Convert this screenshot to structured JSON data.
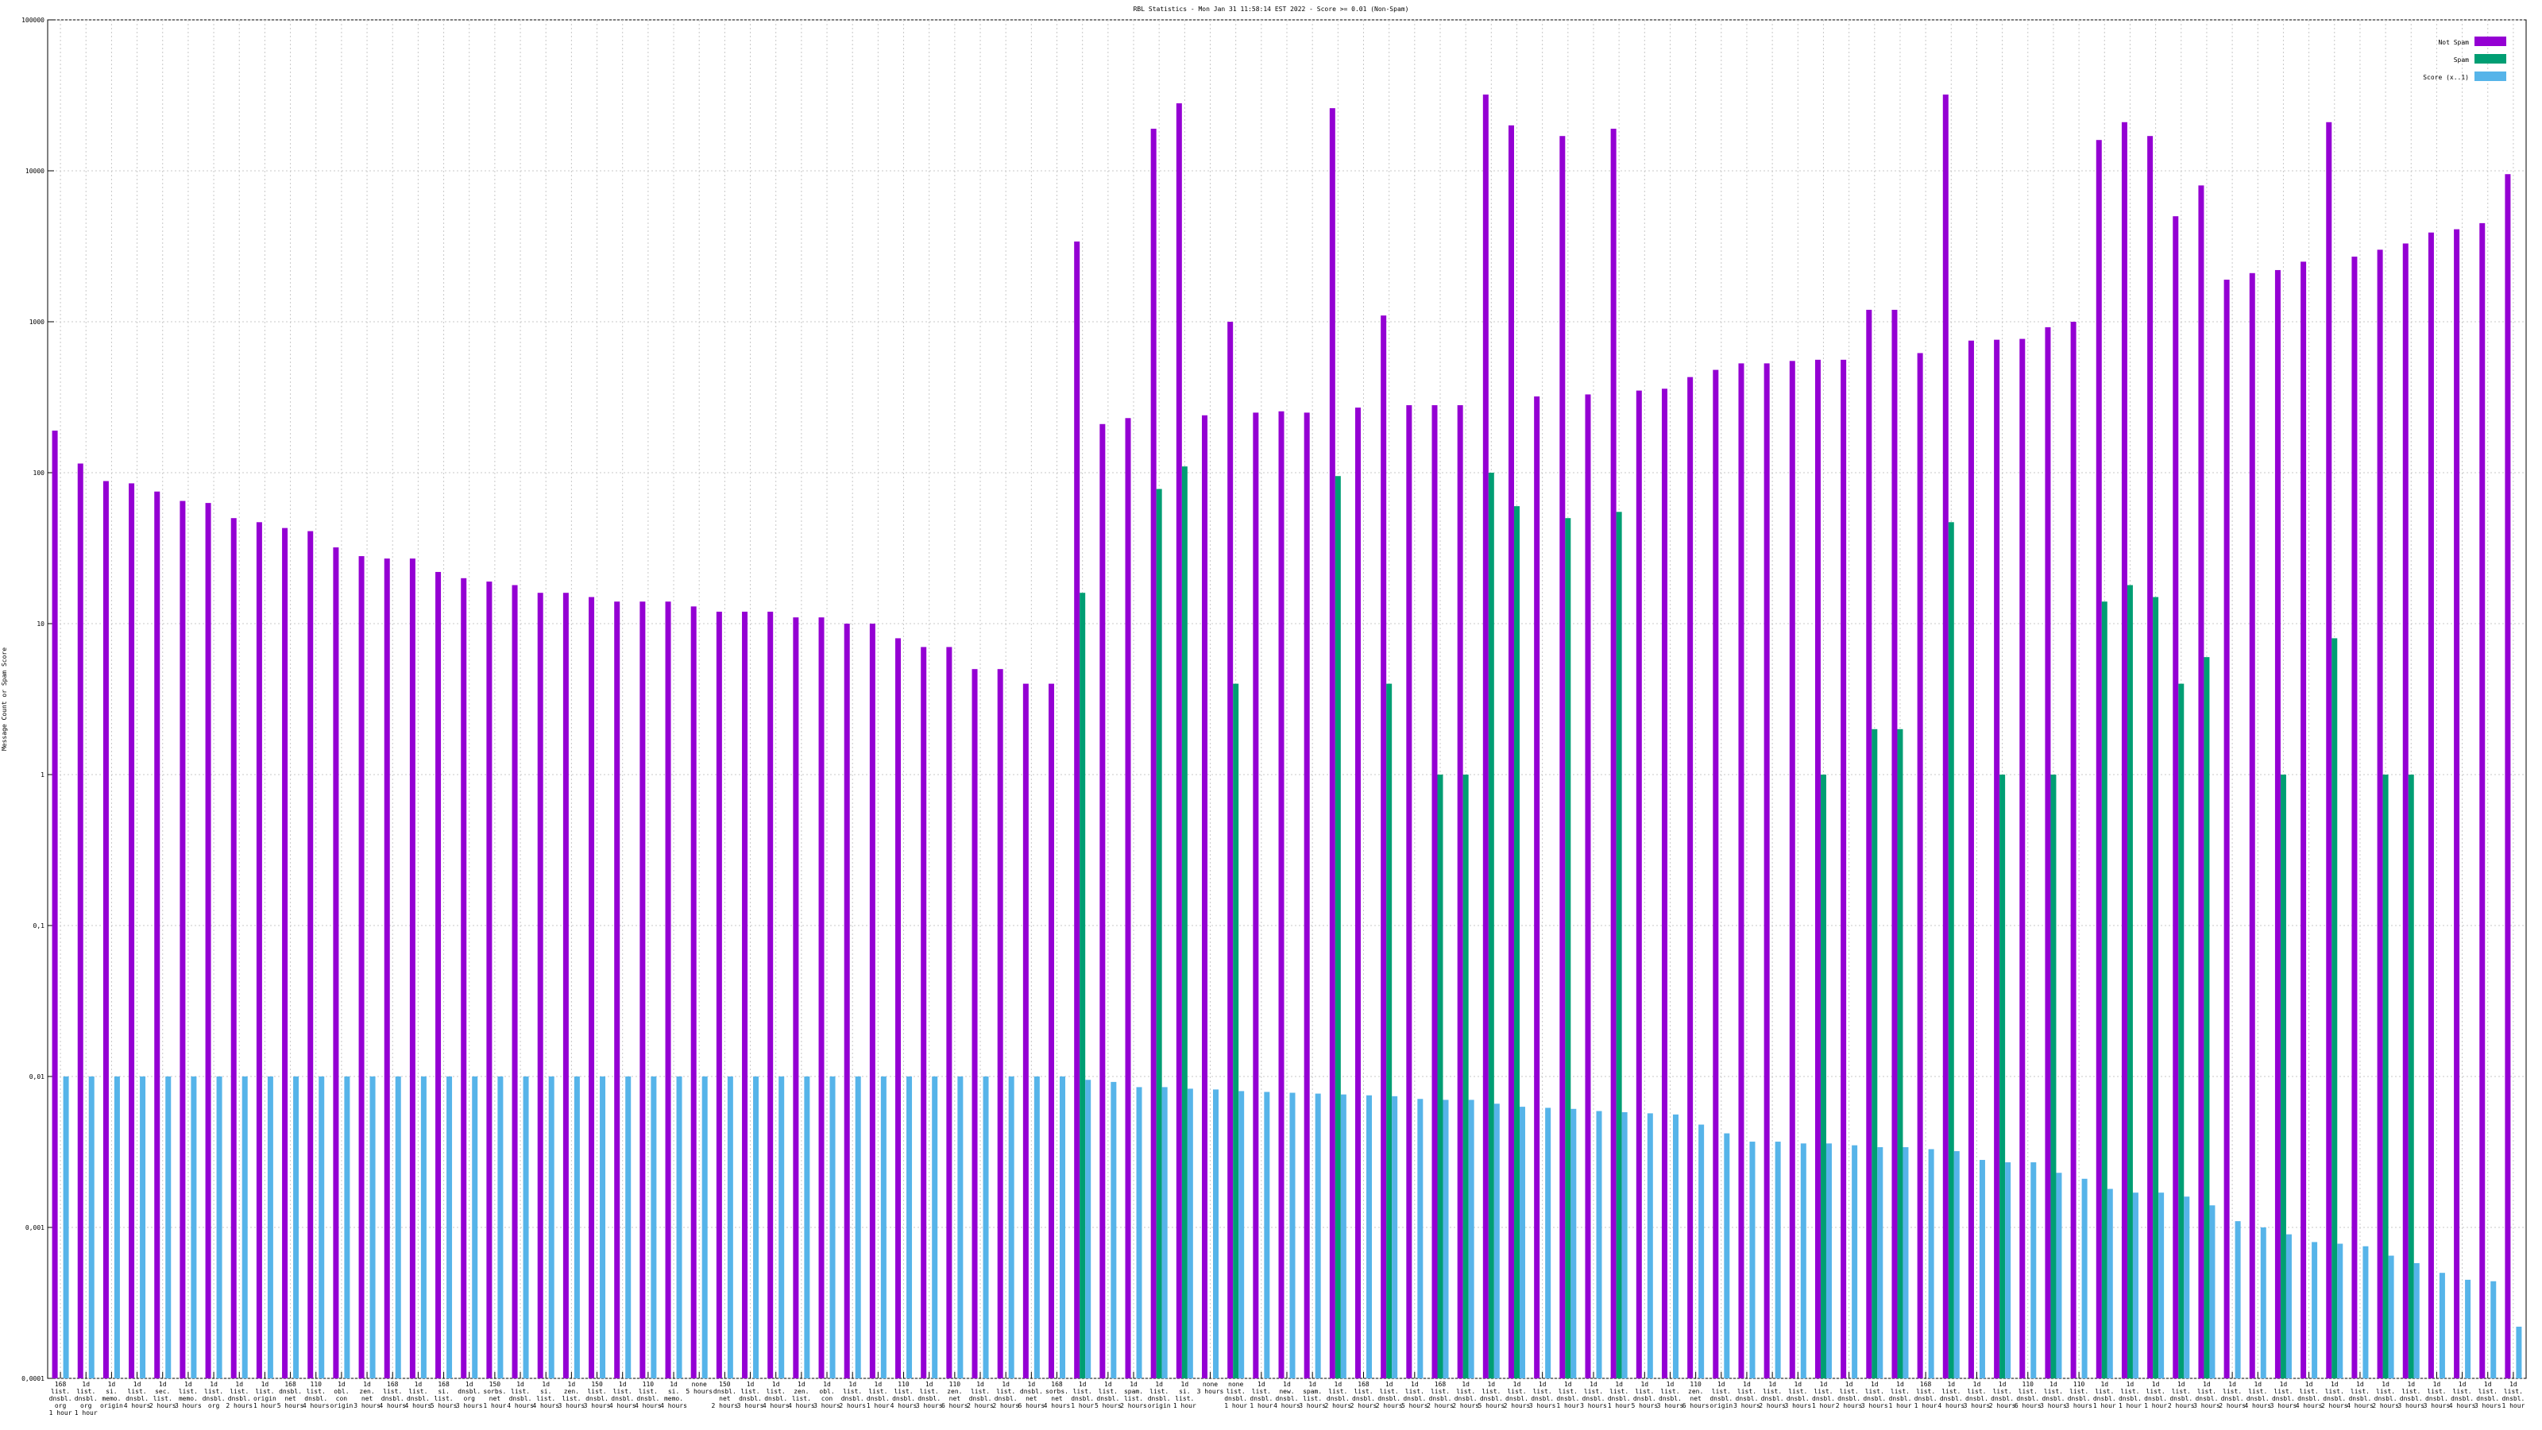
{
  "chart_data": {
    "type": "bar",
    "title": "RBL Statistics - Mon Jan 31 11:58:14 EST 2022 - Score >= 0.01 (Non-Spam)",
    "y_label": "Message Count or Spam Score",
    "log_scale": true,
    "grid": true,
    "legend": "top-right",
    "ylim": [
      0.0001,
      100000
    ],
    "yticks": [
      {
        "value": 0.0001,
        "label": "0,0001"
      },
      {
        "value": 0.001,
        "label": "0,001"
      },
      {
        "value": 0.01,
        "label": "0,01"
      },
      {
        "value": 0.1,
        "label": "0,1"
      },
      1,
      10,
      100,
      1000,
      10000,
      100000
    ],
    "categories": [
      "168\nlist.\ndnsbl.\norg\n1 hour",
      "1d\nlist.\ndnsbl.\norg\n1 hour",
      "1d\nsi.\nmemo.\norigin",
      "1d\nlist.\ndnsbl.\n4 hours",
      "1d\nsec.\nlist.\n2 hours",
      "1d\nlist.\nmemo.\n3 hours",
      "1d\nlist.\ndnsbl.\norg",
      "1d\nlist.\ndnsbl.\n2 hours",
      "1d\nlist.\norigin\n1 hour",
      "168\ndnsbl.\nnet\n5 hours",
      "110\nlist.\ndnsbl.\n4 hours",
      "1d\nobl.\ncon\norigin",
      "1d\nzen.\nnet\n3 hours",
      "168\nlist.\ndnsbl.\n4 hours",
      "1d\nlist.\ndnsbl.\n4 hours",
      "168\nsi.\nlist.\n5 hours",
      "1d\ndnsbl.\norg\n3 hours",
      "150\nsorbs.\nnet\n1 hour",
      "1d\nlist.\ndnsbl.\n4 hours",
      "1d\nsi.\nlist.\n4 hours",
      "1d\nzen.\nlist.\n3 hours",
      "150\nlist.\ndnsbl.\n3 hours",
      "1d\nlist.\ndnsbl.\n4 hours",
      "110\nlist.\ndnsbl.\n4 hours",
      "1d\nsi.\nmemo.\n4 hours",
      "none\n5 hours",
      "150\ndnsbl.\nnet\n2 hours",
      "1d\nlist.\ndnsbl.\n3 hours",
      "1d\nlist.\ndnsbl.\n4 hours",
      "1d\nzen.\nlist.\n4 hours",
      "1d\nobl.\ncon\n3 hours",
      "1d\nlist.\ndnsbl.\n2 hours",
      "1d\nlist.\ndnsbl.\n1 hour",
      "110\nlist.\ndnsbl.\n4 hours",
      "1d\nlist.\ndnsbl.\n3 hours",
      "110\nzen.\nnet\n6 hours",
      "1d\nlist.\ndnsbl.\n2 hours",
      "1d\nlist.\ndnsbl.\n2 hours",
      "1d\ndnsbl.\nnet\n6 hours",
      "168\nsorbs.\nnet\n4 hours",
      "1d\nlist.\ndnsbl.\n1 hour",
      "1d\nlist.\ndnsbl.\n5 hours",
      "1d\nspam.\nlist.\n2 hours",
      "1d\nlist.\ndnsbl.\norigin",
      "1d\nsi.\nlist.\n1 hour",
      "none\n3 hours",
      "none\nlist.\ndnsbl.\n1 hour",
      "1d\nlist.\ndnsbl.\n1 hour",
      "1d\nnew.\ndnsbl.\n4 hours",
      "1d\nspam.\nlist.\n3 hours",
      "1d\nlist.\ndnsbl.\n2 hours",
      "168\nlist.\ndnsbl.\n2 hours",
      "1d\nlist.\ndnsbl.\n2 hours",
      "1d\nlist.\ndnsbl.\n5 hours",
      "168\nlist.\ndnsbl.\n2 hours",
      "1d\nlist.\ndnsbl.\n2 hours",
      "1d\nlist.\ndnsbl.\n5 hours",
      "1d\nlist.\ndnsbl.\n2 hours",
      "1d\nlist.\ndnsbl.\n3 hours",
      "1d\nlist.\ndnsbl.\n1 hour",
      "1d\nlist.\ndnsbl.\n3 hours",
      "1d\nlist.\ndnsbl.\n1 hour",
      "1d\nlist.\ndnsbl.\n5 hours",
      "1d\nlist.\ndnsbl.\n3 hours",
      "110\nzen.\nnet\n6 hours",
      "1d\nlist.\ndnsbl.\norigin",
      "1d\nlist.\ndnsbl.\n3 hours",
      "1d\nlist.\ndnsbl.\n2 hours",
      "1d\nlist.\ndnsbl.\n3 hours",
      "1d\nlist.\ndnsbl.\n1 hour",
      "1d\nlist.\ndnsbl.\n2 hours",
      "1d\nlist.\ndnsbl.\n3 hours",
      "1d\nlist.\ndnsbl.\n1 hour",
      "168\nlist.\ndnsbl.\n1 hour",
      "1d\nlist.\ndnsbl.\n4 hours",
      "1d\nlist.\ndnsbl.\n3 hours",
      "1d\nlist.\ndnsbl.\n2 hours",
      "110\nlist.\ndnsbl.\n6 hours",
      "1d\nlist.\ndnsbl.\n3 hours",
      "110\nlist.\ndnsbl.\n3 hours",
      "1d\nlist.\ndnsbl.\n1 hour",
      "1d\nlist.\ndnsbl.\n1 hour",
      "1d\nlist.\ndnsbl.\n1 hour",
      "1d\nlist.\ndnsbl.\n2 hours",
      "1d\nlist.\ndnsbl.\n3 hours",
      "1d\nlist.\ndnsbl.\n2 hours",
      "1d\nlist.\ndnsbl.\n4 hours",
      "1d\nlist.\ndnsbl.\n3 hours",
      "1d\nlist.\ndnsbl.\n4 hours",
      "1d\nlist.\ndnsbl.\n2 hours",
      "1d\nlist.\ndnsbl.\n4 hours",
      "1d\nlist.\ndnsbl.\n2 hours",
      "1d\nlist.\ndnsbl.\n3 hours",
      "1d\nlist.\ndnsbl.\n3 hours",
      "1d\nlist.\ndnsbl.\n4 hours",
      "1d\nlist.\ndnsbl.\n3 hours",
      "1d\nlist.\ndnsbl.\n1 hour"
    ],
    "series": [
      {
        "name": "Not Spam",
        "color": "#9400d3",
        "values": [
          190,
          115,
          88,
          85,
          75,
          65,
          63,
          50,
          47,
          43,
          41,
          32,
          28,
          27,
          27,
          22,
          20,
          19,
          18,
          16,
          16,
          15,
          14,
          14,
          14,
          13,
          12,
          12,
          12,
          11,
          11,
          10,
          10,
          8,
          7,
          7,
          5,
          5,
          4,
          4,
          3400,
          210,
          230,
          19000,
          28000,
          240,
          1000,
          250,
          255,
          250,
          26000,
          270,
          1100,
          280,
          280,
          280,
          32000,
          20000,
          320,
          17000,
          330,
          19000,
          350,
          360,
          430,
          480,
          530,
          530,
          550,
          560,
          560,
          1200,
          1200,
          620,
          32000,
          750,
          760,
          770,
          920,
          1000,
          16000,
          21000,
          17000,
          5000,
          8000,
          1900,
          2100,
          2200,
          2500,
          21000,
          2700,
          3000,
          3300,
          3900,
          4100,
          4500,
          9500
        ]
      },
      {
        "name": "Spam",
        "color": "#009e73",
        "values": [
          0,
          0,
          0,
          0,
          0,
          0,
          0,
          0,
          0,
          0,
          0,
          0,
          0,
          0,
          0,
          0,
          0,
          0,
          0,
          0,
          0,
          0,
          0,
          0,
          0,
          0,
          0,
          0,
          0,
          0,
          0,
          0,
          0,
          0,
          0,
          0,
          0,
          0,
          0,
          0,
          16,
          0,
          0,
          78,
          110,
          0,
          4,
          0,
          0,
          0,
          95,
          0,
          4,
          0,
          1,
          1,
          100,
          60,
          0,
          50,
          0,
          55,
          0,
          0,
          0,
          0,
          0,
          0,
          0,
          1,
          0,
          2,
          2,
          0,
          47,
          0,
          1,
          0,
          1,
          0,
          14,
          18,
          15,
          4,
          6,
          0,
          0,
          1,
          0,
          8,
          0,
          1,
          1,
          0,
          0,
          0,
          0
        ]
      },
      {
        "name": "Score (x..1)",
        "color": "#56b4e9",
        "values": [
          0.01,
          0.01,
          0.01,
          0.01,
          0.01,
          0.01,
          0.01,
          0.01,
          0.01,
          0.01,
          0.01,
          0.01,
          0.01,
          0.01,
          0.01,
          0.01,
          0.01,
          0.01,
          0.01,
          0.01,
          0.01,
          0.01,
          0.01,
          0.01,
          0.01,
          0.01,
          0.01,
          0.01,
          0.01,
          0.01,
          0.01,
          0.01,
          0.01,
          0.01,
          0.01,
          0.01,
          0.01,
          0.01,
          0.01,
          0.01,
          0.0095,
          0.0092,
          0.0085,
          0.0085,
          0.0083,
          0.0082,
          0.008,
          0.0079,
          0.0078,
          0.0077,
          0.0076,
          0.0075,
          0.0074,
          0.0071,
          0.007,
          0.007,
          0.0066,
          0.0063,
          0.0062,
          0.0061,
          0.0059,
          0.0058,
          0.0057,
          0.0056,
          0.0048,
          0.0042,
          0.0037,
          0.0037,
          0.0036,
          0.0036,
          0.0035,
          0.0034,
          0.0034,
          0.0033,
          0.0032,
          0.0028,
          0.0027,
          0.0027,
          0.0023,
          0.0021,
          0.0018,
          0.0017,
          0.0017,
          0.0016,
          0.0014,
          0.0011,
          0.001,
          0.0009,
          0.0008,
          0.00078,
          0.00075,
          0.00065,
          0.00058,
          0.0005,
          0.00045,
          0.00044,
          0.00022
        ]
      }
    ]
  }
}
